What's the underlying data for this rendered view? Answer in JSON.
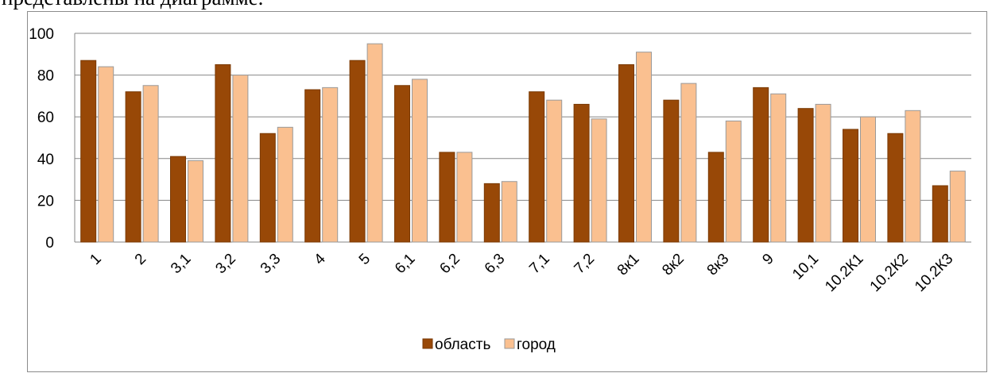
{
  "page": {
    "top_text": "представлены на диаграмме."
  },
  "chart_data": {
    "type": "bar",
    "categories": [
      "1",
      "2",
      "3,1",
      "3,2",
      "3,3",
      "4",
      "5",
      "6,1",
      "6,2",
      "6,3",
      "7,1",
      "7,2",
      "8к1",
      "8к2",
      "8к3",
      "9",
      "10,1",
      "10.2К1",
      "10.2К2",
      "10.2К3"
    ],
    "series": [
      {
        "name": "область",
        "color": "#984807",
        "values": [
          87,
          72,
          41,
          85,
          52,
          73,
          87,
          75,
          43,
          28,
          72,
          66,
          85,
          68,
          43,
          74,
          64,
          54,
          52,
          27
        ]
      },
      {
        "name": "город",
        "color": "#fac090",
        "values": [
          84,
          75,
          39,
          80,
          55,
          74,
          95,
          78,
          43,
          29,
          68,
          59,
          91,
          76,
          58,
          71,
          66,
          60,
          63,
          34
        ]
      }
    ],
    "yticks": [
      0,
      20,
      40,
      60,
      80,
      100
    ],
    "ylim": [
      0,
      100
    ],
    "grid": true,
    "legend": "bottom-center",
    "title": "",
    "xlabel": "",
    "ylabel": ""
  }
}
